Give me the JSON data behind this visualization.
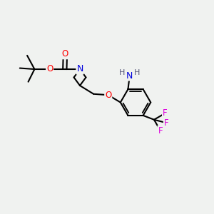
{
  "background_color": "#f0f2f0",
  "atom_colors": {
    "O": "#ff0000",
    "N_boc": "#0000dd",
    "N_amine": "#0000dd",
    "F": "#dd00dd",
    "C": "#000000"
  },
  "bond_color": "#000000",
  "bond_width": 1.5,
  "figsize": [
    3.0,
    3.0
  ],
  "dpi": 100,
  "xlim": [
    0,
    10
  ],
  "ylim": [
    0,
    10
  ]
}
